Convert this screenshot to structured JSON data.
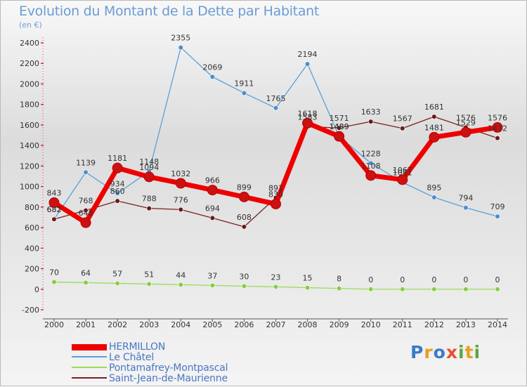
{
  "chart_data": {
    "type": "line",
    "title": "Evolution du Montant de la Dette par Habitant",
    "subtitle": "(en €)",
    "x": [
      "2000",
      "2001",
      "2002",
      "2003",
      "2004",
      "2005",
      "2006",
      "2007",
      "2008",
      "2009",
      "2010",
      "2011",
      "2012",
      "2013",
      "2014"
    ],
    "ylim": [
      -200,
      2400
    ],
    "yticks": [
      -200,
      0,
      200,
      400,
      600,
      800,
      1000,
      1200,
      1400,
      1600,
      1800,
      2000,
      2200,
      2400
    ],
    "grid": false,
    "legend_position": "bottom-left",
    "series": [
      {
        "name": "HERMILLON",
        "color": "#ee0000",
        "marker_color": "#cc1111",
        "values": [
          843,
          648,
          1181,
          1094,
          1032,
          966,
          899,
          830,
          1618,
          1489,
          1108,
          1067,
          1481,
          1529,
          1576
        ],
        "labels": [
          "843",
          "648",
          "1181",
          "1094",
          "1032",
          "966",
          "899",
          "830",
          "1618",
          "1489",
          "1108",
          "1067",
          "1481",
          "1529",
          "1576"
        ]
      },
      {
        "name": "Le Châtel",
        "color": "#5aa0d8",
        "marker_color": "#4a8cd0",
        "values": [
          682,
          1139,
          934,
          1148,
          2355,
          2069,
          1911,
          1765,
          2194,
          1489,
          1228,
          1041,
          895,
          794,
          709
        ],
        "labels": [
          "682",
          "1139",
          "934",
          "1148",
          "2355",
          "2069",
          "1911",
          "1765",
          "2194",
          "1489",
          "1228",
          "1041",
          "895",
          "794",
          "709"
        ]
      },
      {
        "name": "Pontamafrey-Montpascal",
        "color": "#99dd55",
        "marker_color": "#88cc44",
        "values": [
          70,
          64,
          57,
          51,
          44,
          37,
          30,
          23,
          15,
          8,
          0,
          0,
          0,
          0,
          0
        ],
        "labels": [
          "70",
          "64",
          "57",
          "51",
          "44",
          "37",
          "30",
          "23",
          "15",
          "8",
          "0",
          "0",
          "0",
          "0",
          "0"
        ]
      },
      {
        "name": "Saint-Jean-de-Maurienne",
        "color": "#7a2020",
        "marker_color": "#6a1818",
        "values": [
          682,
          768,
          860,
          788,
          776,
          694,
          608,
          891,
          1583,
          1571,
          1633,
          1567,
          1681,
          1576,
          1472
        ],
        "labels": [
          "682",
          "768",
          "860",
          "788",
          "776",
          "694",
          "608",
          "891",
          "1583",
          "1571",
          "1633",
          "1567",
          "1681",
          "1576",
          "1472"
        ]
      }
    ]
  },
  "legend": {
    "items": [
      {
        "name": "HERMILLON",
        "color": "#ee0000"
      },
      {
        "name": "Le Châtel",
        "color": "#5aa0d8"
      },
      {
        "name": "Pontamafrey-Montpascal",
        "color": "#99dd55"
      },
      {
        "name": "Saint-Jean-de-Maurienne",
        "color": "#7a2020"
      }
    ]
  },
  "logo": {
    "text": "Proxiti"
  }
}
